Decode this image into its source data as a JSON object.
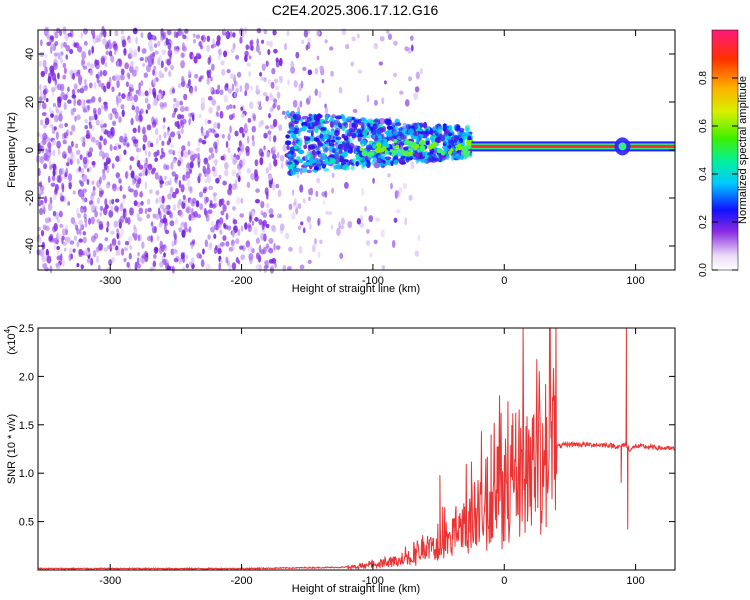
{
  "title": "C2E4.2025.306.17.12.G16",
  "colors": {
    "snr_line": "#e83434",
    "spectrogram_low": "#7a2be2",
    "spectrogram_band": "#ff2a2a"
  },
  "chart_data": [
    {
      "type": "heatmap",
      "xlabel": "Height of straight line (km)",
      "ylabel": "Frequency (Hz)",
      "xlim": [
        -355,
        130
      ],
      "ylim": [
        -50,
        50
      ],
      "x_ticks": [
        "-300",
        "-200",
        "-100",
        "0",
        "100"
      ],
      "x_tick_values": [
        -300,
        -200,
        -100,
        0,
        100
      ],
      "y_ticks": [
        "-40",
        "-20",
        "0",
        "20",
        "40"
      ],
      "y_tick_values": [
        -40,
        -20,
        0,
        20,
        40
      ],
      "colorbar": {
        "label": "Normalized spectral amplitude",
        "range": [
          0.0,
          1.0
        ],
        "ticks": [
          "0.0",
          "0.2",
          "0.4",
          "0.6",
          "0.8"
        ],
        "tick_values": [
          0.0,
          0.2,
          0.4,
          0.6,
          0.8
        ]
      },
      "features": {
        "noise_region_x": [
          -355,
          -120
        ],
        "wandering_signal_x": [
          -165,
          -25
        ],
        "carrier_line_x": [
          -25,
          130
        ],
        "carrier_frequency_hz": 1.5,
        "spike_x": 90
      }
    },
    {
      "type": "line",
      "xlabel": "Height of straight line (km)",
      "ylabel": "SNR (10 * v/v)",
      "y_multiplier": "(x10",
      "y_multiplier_exp": "4",
      "y_multiplier_close": ")",
      "xlim": [
        -355,
        130
      ],
      "ylim": [
        0,
        25000
      ],
      "x_ticks": [
        "-300",
        "-200",
        "-100",
        "0",
        "100"
      ],
      "x_tick_values": [
        -300,
        -200,
        -100,
        0,
        100
      ],
      "y_ticks": [
        "0.5",
        "1.0",
        "1.5",
        "2.0",
        "2.5"
      ],
      "y_tick_values": [
        5000,
        10000,
        15000,
        20000,
        25000
      ],
      "series_profile": {
        "x": [
          -355,
          -200,
          -110,
          -80,
          -50,
          -30,
          -10,
          10,
          30,
          50,
          80,
          88,
          92,
          96,
          100,
          130
        ],
        "y": [
          150,
          150,
          300,
          1000,
          2500,
          4500,
          7500,
          10500,
          12500,
          13000,
          12900,
          12700,
          13000,
          12400,
          12800,
          12500
        ]
      },
      "series_spikes": [
        {
          "x": -49,
          "y": 9800
        },
        {
          "x": -25,
          "y": 11200
        },
        {
          "x": -10,
          "y": 14000
        },
        {
          "x": 89,
          "y": 9000
        },
        {
          "x": 93,
          "y": 25500
        },
        {
          "x": 94,
          "y": 4200
        }
      ]
    }
  ]
}
